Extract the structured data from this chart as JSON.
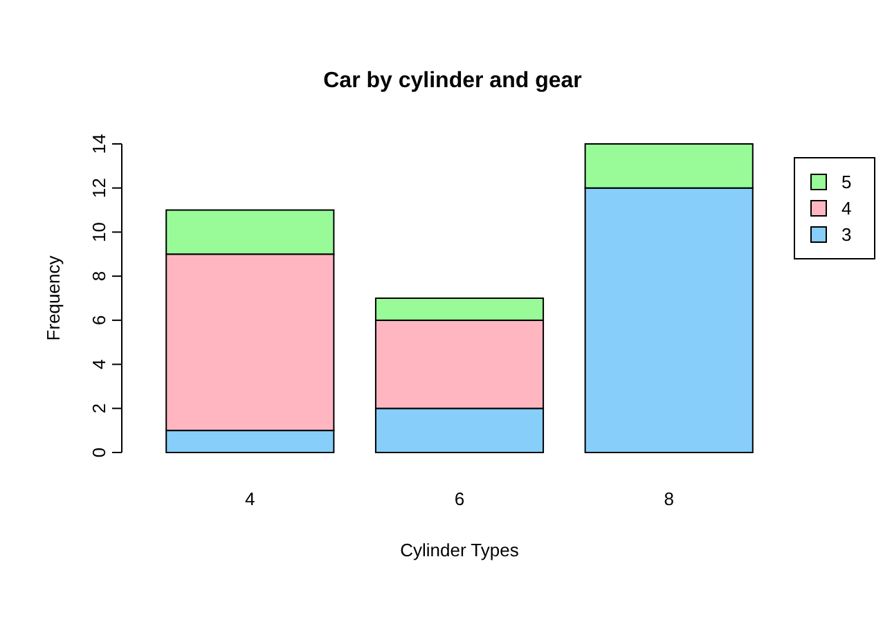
{
  "chart_data": {
    "type": "bar",
    "title": "Car by cylinder and gear",
    "xlabel": "Cylinder Types",
    "ylabel": "Frequency",
    "categories": [
      "4",
      "6",
      "8"
    ],
    "stacked": true,
    "ylim": [
      0,
      14
    ],
    "yticks": [
      0,
      2,
      4,
      6,
      8,
      10,
      12,
      14
    ],
    "legend": "top right",
    "series": [
      {
        "name": "3",
        "color": "#87cefa",
        "values": [
          1,
          2,
          12
        ]
      },
      {
        "name": "4",
        "color": "#ffb6c1",
        "values": [
          8,
          4,
          0
        ]
      },
      {
        "name": "5",
        "color": "#98fb98",
        "values": [
          2,
          1,
          2
        ]
      }
    ]
  }
}
